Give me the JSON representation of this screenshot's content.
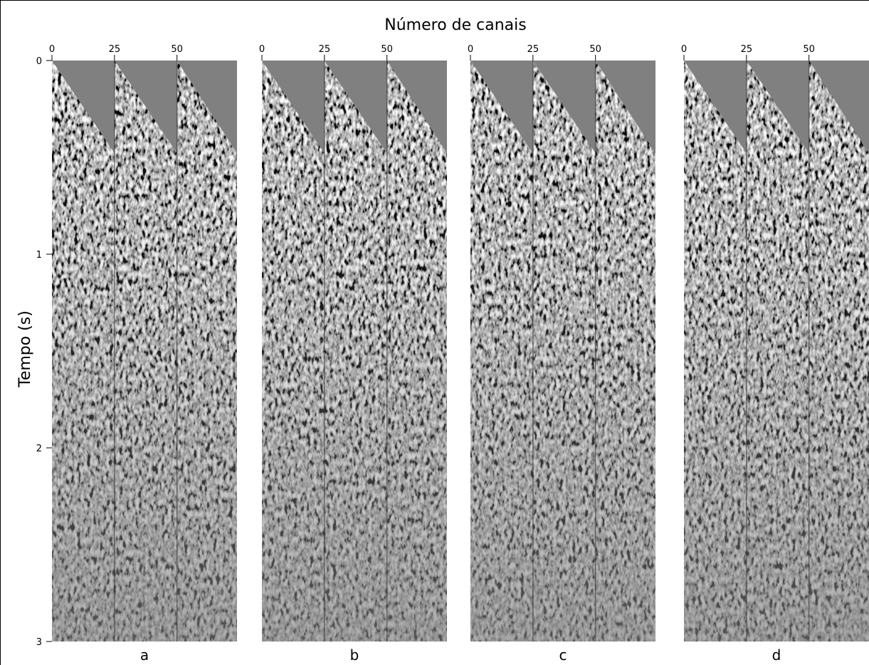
{
  "figure": {
    "title": "Número de canais",
    "y_label": "Tempo (s)",
    "ylim": [
      0,
      3
    ],
    "yticks": [
      0,
      1,
      2,
      3
    ],
    "xlim": [
      0,
      74
    ],
    "panels": [
      {
        "label": "a",
        "xticks": [
          0,
          25,
          50
        ]
      },
      {
        "label": "b",
        "xticks": [
          0,
          25,
          50
        ]
      },
      {
        "label": "c",
        "xticks": [
          0,
          25,
          50
        ]
      },
      {
        "label": "d",
        "xticks": [
          0,
          25,
          50
        ]
      }
    ]
  }
}
